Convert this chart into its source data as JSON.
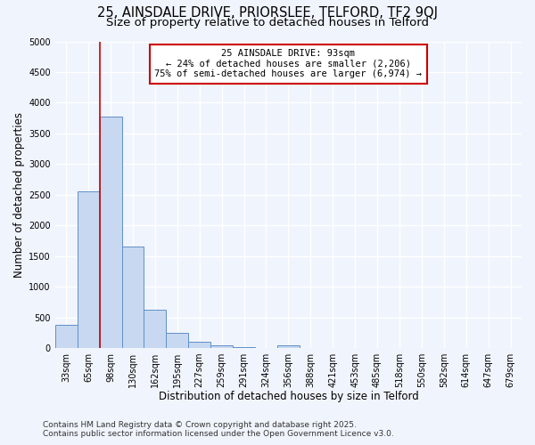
{
  "title_line1": "25, AINSDALE DRIVE, PRIORSLEE, TELFORD, TF2 9QJ",
  "title_line2": "Size of property relative to detached houses in Telford",
  "xlabel": "Distribution of detached houses by size in Telford",
  "ylabel": "Number of detached properties",
  "bar_labels": [
    "33sqm",
    "65sqm",
    "98sqm",
    "130sqm",
    "162sqm",
    "195sqm",
    "227sqm",
    "259sqm",
    "291sqm",
    "324sqm",
    "356sqm",
    "388sqm",
    "421sqm",
    "453sqm",
    "485sqm",
    "518sqm",
    "550sqm",
    "582sqm",
    "614sqm",
    "647sqm",
    "679sqm"
  ],
  "bar_values": [
    380,
    2550,
    3780,
    1650,
    620,
    240,
    100,
    50,
    20,
    0,
    50,
    0,
    0,
    0,
    0,
    0,
    0,
    0,
    0,
    0,
    0
  ],
  "bar_color": "#c8d8f0",
  "bar_edge_color": "#6090c8",
  "annotation_text_line1": "25 AINSDALE DRIVE: 93sqm",
  "annotation_text_line2": "← 24% of detached houses are smaller (2,206)",
  "annotation_text_line3": "75% of semi-detached houses are larger (6,974) →",
  "annotation_box_color": "#ffffff",
  "annotation_box_edge_color": "#cc0000",
  "vline_color": "#cc0000",
  "vline_x_index": 1.5,
  "ylim": [
    0,
    5000
  ],
  "yticks": [
    0,
    500,
    1000,
    1500,
    2000,
    2500,
    3000,
    3500,
    4000,
    4500,
    5000
  ],
  "footnote_line1": "Contains HM Land Registry data © Crown copyright and database right 2025.",
  "footnote_line2": "Contains public sector information licensed under the Open Government Licence v3.0.",
  "bg_color": "#f0f4fc",
  "plot_bg_color": "#f0f4fc",
  "grid_color": "#ffffff",
  "title_fontsize": 10.5,
  "subtitle_fontsize": 9.5,
  "tick_fontsize": 7,
  "label_fontsize": 8.5,
  "annotation_fontsize": 7.5,
  "footnote_fontsize": 6.5
}
